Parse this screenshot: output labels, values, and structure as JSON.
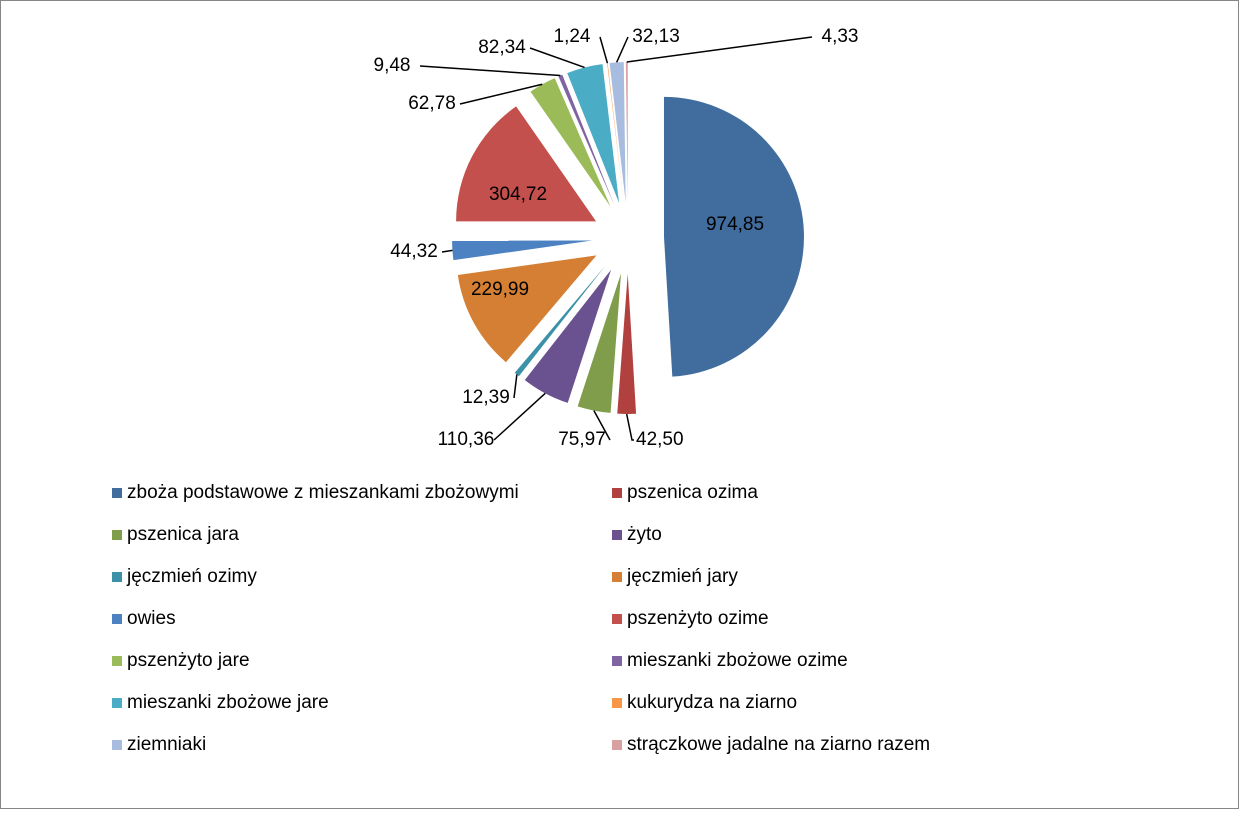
{
  "chart_data": {
    "type": "pie",
    "categories": [
      "zboża podstawowe z mieszankami zbożowymi",
      "pszenica ozima",
      "pszenica jara",
      "żyto",
      "jęczmień ozimy",
      "jęczmień jary",
      "owies",
      "pszenżyto ozime",
      "pszenżyto jare",
      "mieszanki zbożowe ozime",
      "mieszanki zbożowe jare",
      "kukurydza na ziarno",
      "ziemniaki",
      "strączkowe jadalne na ziarno razem"
    ],
    "values": [
      974.85,
      42.5,
      75.97,
      110.36,
      12.39,
      229.99,
      44.32,
      304.72,
      62.78,
      9.48,
      82.34,
      1.24,
      32.13,
      4.33
    ],
    "value_labels": [
      "974,85",
      "42,50",
      "75,97",
      "110,36",
      "12,39",
      "229,99",
      "44,32",
      "304,72",
      "62,78",
      "9,48",
      "82,34",
      "1,24",
      "32,13",
      "4,33"
    ],
    "colors": [
      "#416d9e",
      "#b0413e",
      "#7f9d4a",
      "#6a5190",
      "#3c91a8",
      "#d47f33",
      "#4c81c2",
      "#c4504d",
      "#9bbb59",
      "#8064a2",
      "#4bacc6",
      "#f79646",
      "#a8bcdf",
      "#d9a0a0"
    ],
    "legend": "bottom"
  }
}
